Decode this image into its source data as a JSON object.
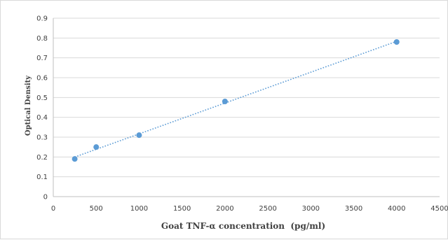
{
  "chart_data": {
    "type": "scatter",
    "title": "",
    "xlabel": "Goat  TNF-α concentration  (pg/ml)",
    "ylabel": "Optical Density",
    "xlim": [
      0,
      4500
    ],
    "ylim": [
      0,
      0.9
    ],
    "x_ticks": [
      "0",
      "500",
      "1000",
      "1500",
      "2000",
      "2500",
      "3000",
      "3500",
      "4000",
      "4500"
    ],
    "y_ticks": [
      "0",
      "0.1",
      "0.2",
      "0.3",
      "0.4",
      "0.5",
      "0.6",
      "0.7",
      "0.8",
      "0.9"
    ],
    "grid": "horizontal",
    "legend": "none",
    "trendline": "linear, dotted",
    "series": [
      {
        "x": [
          250,
          500,
          1000,
          2000,
          4000
        ],
        "y": [
          0.19,
          0.25,
          0.31,
          0.48,
          0.78
        ]
      }
    ],
    "colors": {
      "marker": "#5b9bd5",
      "trendline": "#5b9bd5",
      "grid": "#d9d9d9",
      "axis": "#bfbfbf",
      "text": "#404040"
    }
  }
}
